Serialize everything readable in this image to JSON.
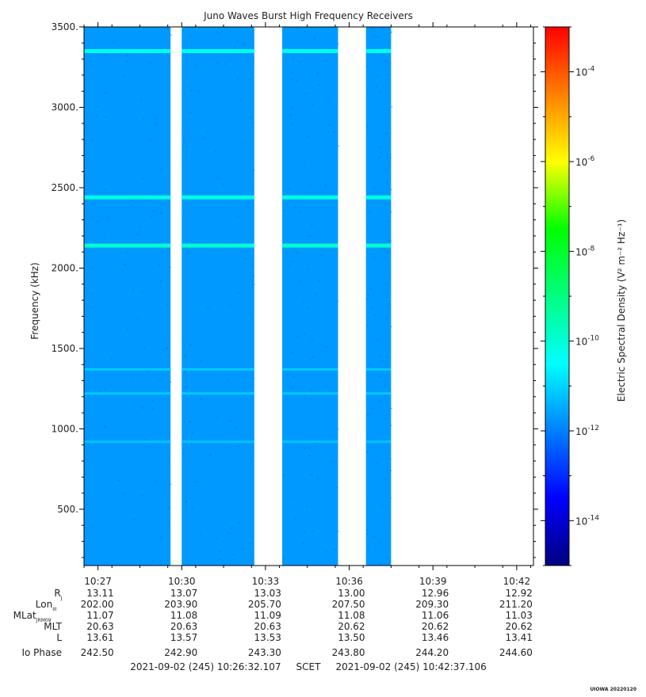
{
  "chart_data": {
    "type": "heatmap",
    "title": "Juno Waves Burst High Frequency Receivers",
    "ylabel": "Frequency (kHz)",
    "ylim": [
      150,
      3500
    ],
    "y_ticks": [
      "500.",
      "1000.",
      "1500.",
      "2000.",
      "2500.",
      "3000.",
      "3500."
    ],
    "x_ticks": [
      "10:27",
      "10:30",
      "10:33",
      "10:36",
      "10:39",
      "10:42"
    ],
    "colorbar": {
      "label": "Electric Spectral Density (V² m⁻² Hz⁻¹)",
      "range_log10": [
        -15,
        -3
      ],
      "ticks": [
        "10-4",
        "10-6",
        "10-8",
        "10-10",
        "10-12",
        "10-14"
      ]
    },
    "data_segments_minutes_after_1026": [
      [
        0.0,
        3.1
      ],
      [
        3.5,
        6.1
      ],
      [
        7.1,
        9.1
      ],
      [
        10.1,
        11.0
      ]
    ],
    "emission_bands_khz": [
      {
        "freq": 3350,
        "level": -10.2
      },
      {
        "freq": 2440,
        "level": -10.1
      },
      {
        "freq": 2140,
        "level": -9.9
      },
      {
        "freq": 1370,
        "level": -11.1
      },
      {
        "freq": 1220,
        "level": -11.1
      },
      {
        "freq": 920,
        "level": -11.2
      }
    ],
    "background_level_log10": -11.7,
    "ephemeris": {
      "row_labels": [
        "R",
        "Lon",
        "MLat",
        "MLT",
        "L",
        "Io Phase"
      ],
      "label_subscripts": [
        "J",
        "III",
        "JRM09",
        "",
        "",
        ""
      ],
      "rows": [
        [
          "13.11",
          "13.07",
          "13.03",
          "13.00",
          "12.96",
          "12.92"
        ],
        [
          "202.00",
          "203.90",
          "205.70",
          "207.50",
          "209.30",
          "211.20"
        ],
        [
          "11.07",
          "11.08",
          "11.09",
          "11.08",
          "11.06",
          "11.03"
        ],
        [
          "20.63",
          "20.63",
          "20.63",
          "20.62",
          "20.62",
          "20.62"
        ],
        [
          "13.61",
          "13.57",
          "13.53",
          "13.50",
          "13.46",
          "13.41"
        ],
        [
          "242.50",
          "242.90",
          "243.30",
          "243.80",
          "244.20",
          "244.60"
        ]
      ]
    },
    "time_range_text": "2021-09-02 (245) 10:26:32.107     SCET     2021-09-02 (245) 10:42:37.106"
  },
  "footer_tag": "UIOWA 20220120"
}
